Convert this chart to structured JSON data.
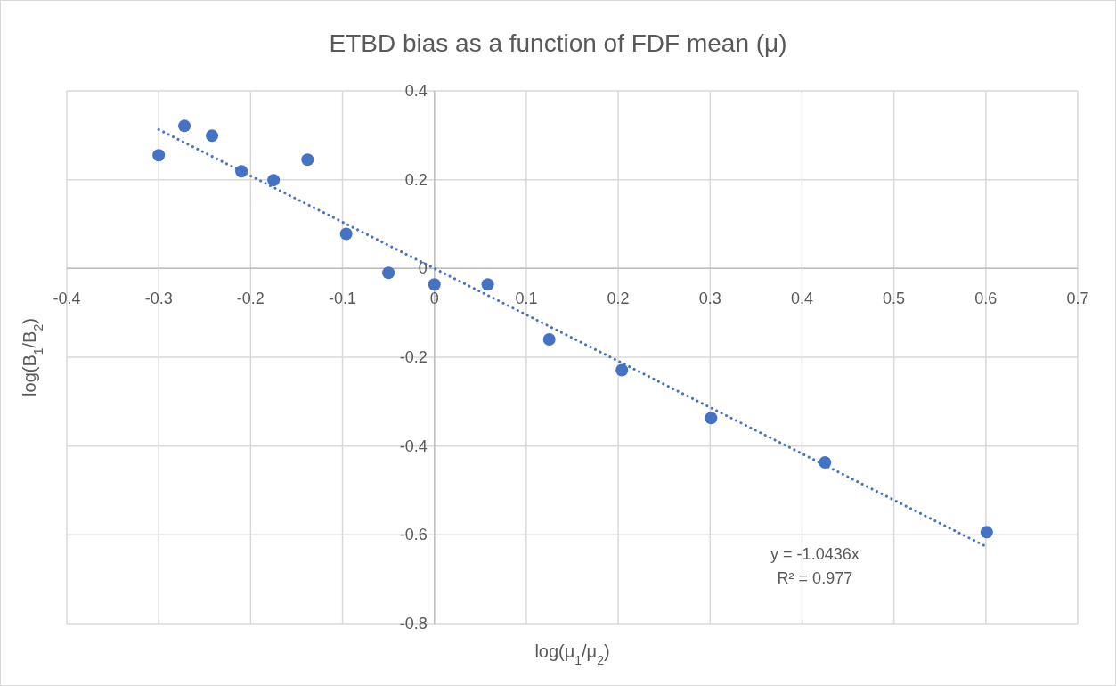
{
  "chart_data": {
    "type": "scatter",
    "title": "ETBD bias as a function of FDF mean (μ)",
    "xlabel": "log(μ$_{1}$/μ$_{2}$)",
    "ylabel": "log(B$_{1}$/B$_{2}$)",
    "xlim": [
      -0.4,
      0.7
    ],
    "xticks": [
      -0.4,
      -0.3,
      -0.2,
      -0.1,
      0,
      0.1,
      0.2,
      0.3,
      0.4,
      0.5,
      0.6,
      0.7
    ],
    "ylim": [
      -0.8,
      0.4
    ],
    "yticks": [
      -0.8,
      -0.6,
      -0.4,
      -0.2,
      0,
      0.2,
      0.4
    ],
    "grid": true,
    "series": [
      {
        "color": "#4472c4",
        "marker": "circle",
        "x": [
          -0.3,
          -0.272,
          -0.242,
          -0.21,
          -0.175,
          -0.138,
          -0.096,
          -0.05,
          0,
          0.058,
          0.125,
          0.204,
          0.301,
          0.425,
          0.601
        ],
        "values": [
          0.255,
          0.321,
          0.299,
          0.219,
          0.199,
          0.245,
          0.078,
          -0.01,
          -0.036,
          -0.036,
          -0.16,
          -0.229,
          -0.337,
          -0.437,
          -0.594
        ]
      },
      {
        "type": "line",
        "color": "#4472c4",
        "marker": "none",
        "line_style": "dotted",
        "x": [
          -0.3,
          0.602
        ],
        "values": [
          0.313,
          -0.628
        ]
      }
    ],
    "annotations": [
      "y = -1.0436x",
      "R² = 0.977"
    ]
  }
}
